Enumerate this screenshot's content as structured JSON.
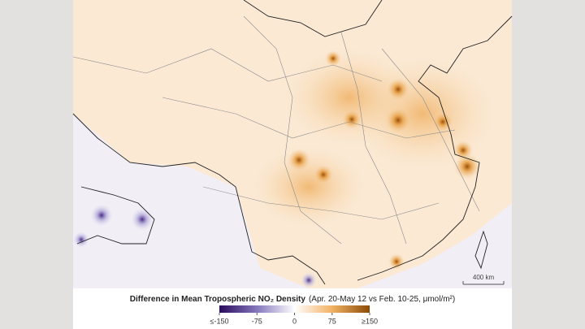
{
  "legend": {
    "title": "Difference in Mean Tropospheric NO₂ Density",
    "note": "(Apr. 20-May 12 vs Feb. 10-25, μmol/m²)",
    "colors": [
      "#2a0a5c",
      "#8577bd",
      "#ffffff",
      "#f2b264",
      "#8c4a06"
    ],
    "ticks": [
      {
        "value": -150,
        "label": "≤-150"
      },
      -75,
      0,
      75,
      {
        "value": 150,
        "label": "≥150"
      }
    ]
  },
  "scale_bar": {
    "label": "400 km"
  }
}
